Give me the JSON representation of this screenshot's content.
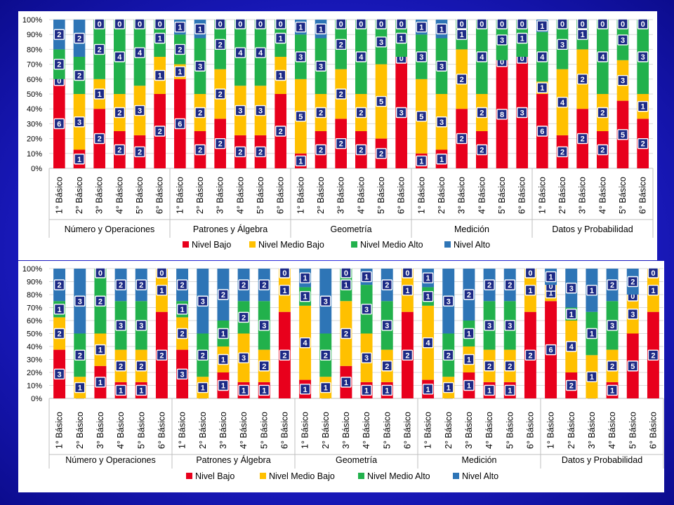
{
  "chart_data": [
    {
      "type": "bar",
      "stacked": true,
      "percent": true,
      "yticks": [
        "0%",
        "10%",
        "20%",
        "30%",
        "40%",
        "50%",
        "60%",
        "70%",
        "80%",
        "90%",
        "100%"
      ],
      "ylim": [
        0,
        100
      ],
      "groups": [
        {
          "name": "Número y Operaciones",
          "categories": [
            "1° Básico",
            "2° Básico",
            "3° Básico",
            "4° Básico",
            "5° Básico",
            "6° Básico"
          ]
        },
        {
          "name": "Patrones y Álgebra",
          "categories": [
            "1° Básico",
            "2° Básico",
            "3° Básico",
            "4° Básico",
            "5° Básico",
            "6° Básico"
          ]
        },
        {
          "name": "Geometría",
          "categories": [
            "1° Básico",
            "2° Básico",
            "3° Básico",
            "4° Básico",
            "5° Básico",
            "6° Básico"
          ]
        },
        {
          "name": "Medición",
          "categories": [
            "1° Básico",
            "2° Básico",
            "3° Básico",
            "4° Básico",
            "5° Básico",
            "6° Básico"
          ]
        },
        {
          "name": "Datos y Probabilidad",
          "categories": [
            "1° Básico",
            "2° Básico",
            "3° Básico",
            "4° Básico",
            "5° Básico",
            "6° Básico"
          ]
        }
      ],
      "series": [
        {
          "name": "Nivel Bajo",
          "color": "#e8001c",
          "values": [
            [
              6,
              1,
              2,
              2,
              2,
              2
            ],
            [
              6,
              2,
              2,
              2,
              2,
              2
            ],
            [
              1,
              2,
              2,
              2,
              2,
              3
            ],
            [
              1,
              1,
              2,
              2,
              8,
              3
            ],
            [
              6,
              2,
              2,
              2,
              5,
              2
            ]
          ]
        },
        {
          "name": "Nivel  Medio Bajo",
          "color": "#ffc000",
          "values": [
            [
              0,
              3,
              1,
              2,
              3,
              1
            ],
            [
              1,
              2,
              2,
              3,
              3,
              1
            ],
            [
              5,
              2,
              2,
              2,
              5,
              0
            ],
            [
              5,
              3,
              2,
              2,
              0,
              0
            ],
            [
              1,
              4,
              2,
              2,
              3,
              1
            ]
          ]
        },
        {
          "name": "Nivel Medio Alto",
          "color": "#22b14c",
          "values": [
            [
              2,
              2,
              2,
              4,
              4,
              1
            ],
            [
              2,
              3,
              2,
              4,
              4,
              1
            ],
            [
              3,
              3,
              2,
              4,
              3,
              1
            ],
            [
              3,
              3,
              1,
              4,
              3,
              1
            ],
            [
              4,
              3,
              1,
              4,
              3,
              3
            ]
          ]
        },
        {
          "name": "Nivel Alto",
          "color": "#2e75b6",
          "values": [
            [
              2,
              2,
              0,
              0,
              0,
              0
            ],
            [
              1,
              1,
              0,
              0,
              0,
              0
            ],
            [
              1,
              1,
              0,
              0,
              0,
              0
            ],
            [
              1,
              1,
              0,
              0,
              0,
              0
            ],
            [
              1,
              0,
              0,
              0,
              0,
              0
            ]
          ]
        }
      ]
    },
    {
      "type": "bar",
      "stacked": true,
      "percent": true,
      "yticks": [
        "0%",
        "10%",
        "20%",
        "30%",
        "40%",
        "50%",
        "60%",
        "70%",
        "80%",
        "90%",
        "100%"
      ],
      "ylim": [
        0,
        100
      ],
      "groups": [
        {
          "name": "Número y Operaciones",
          "categories": [
            "1° Básico",
            "2° Básico",
            "3° Básico",
            "4° Básico",
            "5° Básico",
            "6° Básico"
          ]
        },
        {
          "name": "Patrones y Álgebra",
          "categories": [
            "1° Básico",
            "2° Básico",
            "3° Básico",
            "4° Básico",
            "5° Básico",
            "6° Básico"
          ]
        },
        {
          "name": "Geometría",
          "categories": [
            "1° Básico",
            "2° Básico",
            "3° Básico",
            "4° Básico",
            "5° Básico",
            "6° Básico"
          ]
        },
        {
          "name": "Medición",
          "categories": [
            "1° Básico",
            "2° Básico",
            "3° Básico",
            "4° Básico",
            "5° Básico",
            "6° Básico"
          ]
        },
        {
          "name": "Datos y Probabilidad",
          "categories": [
            "1° Básico",
            "2° Básico",
            "3° Básico",
            "4° Básico",
            "5° Básico",
            "6° Básico"
          ]
        }
      ],
      "series": [
        {
          "name": "Nivel Bajo",
          "color": "#e8001c",
          "values": [
            [
              3,
              0,
              1,
              1,
              1,
              2
            ],
            [
              3,
              0,
              1,
              1,
              1,
              2
            ],
            [
              1,
              0,
              1,
              1,
              1,
              2
            ],
            [
              1,
              0,
              1,
              1,
              1,
              2
            ],
            [
              6,
              2,
              0,
              1,
              5,
              2
            ]
          ]
        },
        {
          "name": "Nivel  Medio Bajo",
          "color": "#ffc000",
          "values": [
            [
              2,
              1,
              1,
              2,
              2,
              1
            ],
            [
              2,
              1,
              1,
              3,
              2,
              1
            ],
            [
              4,
              1,
              2,
              3,
              2,
              1
            ],
            [
              4,
              1,
              1,
              2,
              2,
              1
            ],
            [
              1,
              4,
              1,
              2,
              3,
              1
            ]
          ]
        },
        {
          "name": "Nivel Medio Alto",
          "color": "#22b14c",
          "values": [
            [
              1,
              2,
              2,
              3,
              3,
              0
            ],
            [
              1,
              2,
              1,
              2,
              3,
              0
            ],
            [
              1,
              2,
              1,
              3,
              3,
              0
            ],
            [
              1,
              2,
              1,
              3,
              3,
              0
            ],
            [
              0,
              1,
              1,
              3,
              0,
              0
            ]
          ]
        },
        {
          "name": "Nivel Alto",
          "color": "#2e75b6",
          "values": [
            [
              2,
              3,
              0,
              2,
              2,
              0
            ],
            [
              2,
              3,
              2,
              2,
              2,
              0
            ],
            [
              1,
              3,
              0,
              1,
              2,
              0
            ],
            [
              1,
              3,
              2,
              2,
              2,
              0
            ],
            [
              1,
              3,
              1,
              2,
              2,
              0
            ]
          ]
        }
      ]
    }
  ]
}
